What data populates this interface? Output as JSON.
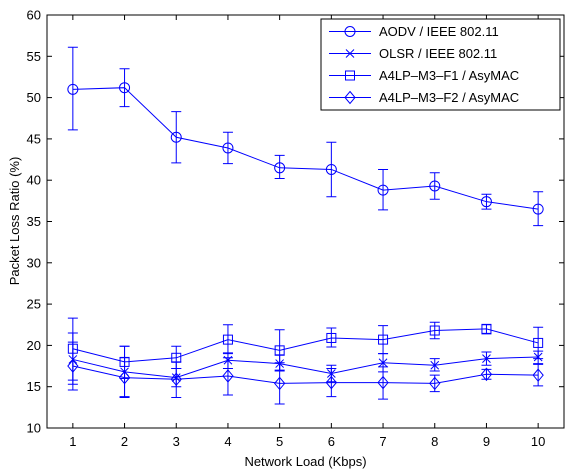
{
  "chart_data": {
    "type": "line",
    "xlabel": "Network Load (Kbps)",
    "ylabel": "Packet Loss Ratio (%)",
    "x": [
      1,
      2,
      3,
      4,
      5,
      6,
      7,
      8,
      9,
      10
    ],
    "xlim": [
      0.5,
      10.5
    ],
    "ylim": [
      10,
      60
    ],
    "xticks": [
      "1",
      "2",
      "3",
      "4",
      "5",
      "6",
      "7",
      "8",
      "9",
      "10"
    ],
    "yticks": [
      "10",
      "15",
      "20",
      "25",
      "30",
      "35",
      "40",
      "45",
      "50",
      "55",
      "60"
    ],
    "grid": false,
    "legend_position": "top-right",
    "color": "#0000ff",
    "series": [
      {
        "name": "AODV / IEEE 802.11",
        "marker": "circle",
        "values": [
          51.0,
          51.2,
          45.2,
          43.9,
          41.5,
          41.3,
          38.8,
          39.3,
          37.4,
          36.5
        ],
        "err_low": [
          46.1,
          48.9,
          42.1,
          42.0,
          40.2,
          38.0,
          36.4,
          37.7,
          36.5,
          34.5
        ],
        "err_high": [
          56.1,
          53.5,
          48.3,
          45.8,
          43.0,
          44.6,
          41.3,
          40.9,
          38.3,
          38.6
        ]
      },
      {
        "name": "OLSR / IEEE 802.11",
        "marker": "x",
        "values": [
          18.3,
          16.8,
          16.1,
          18.2,
          17.8,
          16.6,
          17.9,
          17.6,
          18.4,
          18.6
        ],
        "err_low": [
          15.3,
          13.8,
          15.0,
          17.2,
          16.9,
          15.6,
          16.8,
          16.9,
          17.6,
          17.8
        ],
        "err_high": [
          21.5,
          19.9,
          17.2,
          19.1,
          18.8,
          17.6,
          19.0,
          18.4,
          19.2,
          19.3
        ]
      },
      {
        "name": "A4LP–M3–F1 / AsyMAC",
        "marker": "square",
        "values": [
          19.6,
          18.0,
          18.5,
          20.7,
          19.4,
          20.9,
          20.7,
          21.8,
          22.0,
          20.3
        ],
        "err_low": [
          15.8,
          16.0,
          17.2,
          19.0,
          17.0,
          19.8,
          19.0,
          20.8,
          21.4,
          18.4
        ],
        "err_high": [
          23.3,
          19.9,
          19.9,
          22.5,
          21.9,
          22.1,
          22.4,
          22.8,
          22.5,
          22.2
        ]
      },
      {
        "name": "A4LP–M3–F2 / AsyMAC",
        "marker": "diamond",
        "values": [
          17.5,
          16.1,
          15.9,
          16.3,
          15.4,
          15.5,
          15.5,
          15.4,
          16.5,
          16.4
        ],
        "err_low": [
          14.6,
          13.7,
          13.7,
          14.0,
          12.9,
          13.8,
          13.5,
          14.4,
          15.9,
          15.1
        ],
        "err_high": [
          20.4,
          18.5,
          18.0,
          18.5,
          17.9,
          17.2,
          17.4,
          16.4,
          17.1,
          17.7
        ]
      }
    ]
  }
}
